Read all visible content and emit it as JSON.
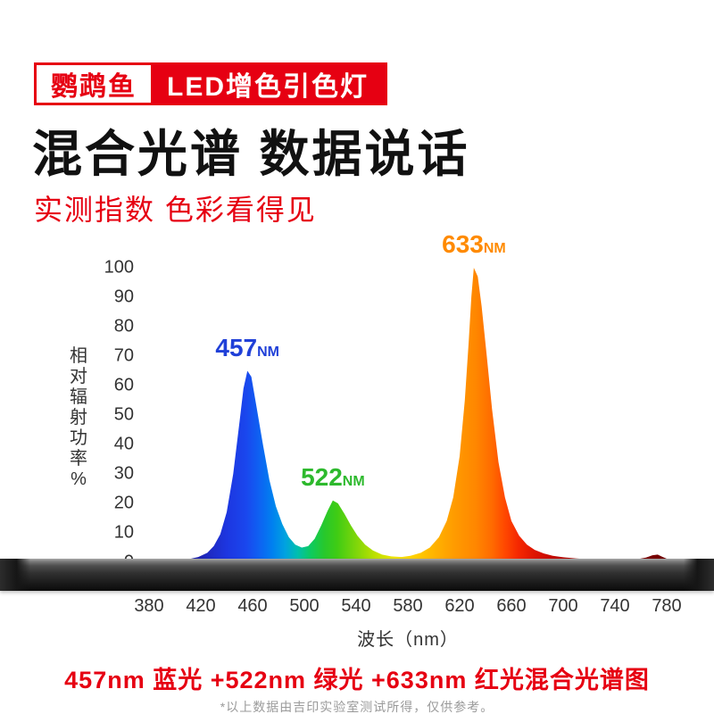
{
  "header": {
    "brand": "鹦鹉鱼",
    "product": "LED增色引色灯",
    "title": "混合光谱 数据说话",
    "subtitle": "实测指数 色彩看得见"
  },
  "colors": {
    "accent_red": "#e60012",
    "blue_label": "#2040d8",
    "green_label": "#2db92d",
    "orange_label": "#ff8a00"
  },
  "chart_data": {
    "type": "area",
    "title": "457nm 蓝光 +522nm 绿光 +633nm 红光混合光谱图",
    "xlabel": "波长（nm）",
    "ylabel": "相对辐射功率%",
    "xlim": [
      380,
      780
    ],
    "ylim": [
      0,
      100
    ],
    "x_ticks": [
      380,
      420,
      460,
      500,
      540,
      580,
      620,
      660,
      700,
      740,
      780
    ],
    "y_ticks": [
      0,
      10,
      20,
      30,
      40,
      50,
      60,
      70,
      80,
      90,
      100
    ],
    "grid": false,
    "legend": false,
    "peaks": [
      {
        "label_value": "457",
        "label_unit": "NM",
        "wavelength": 456,
        "value": 65,
        "color": "#2040d8"
      },
      {
        "label_value": "522",
        "label_unit": "NM",
        "wavelength": 522,
        "value": 21,
        "color": "#2db92d"
      },
      {
        "label_value": "633",
        "label_unit": "NM",
        "wavelength": 631,
        "value": 100,
        "color": "#ff8a00"
      }
    ],
    "points": [
      [
        380,
        0.3
      ],
      [
        390,
        0.4
      ],
      [
        400,
        0.6
      ],
      [
        410,
        1
      ],
      [
        418,
        1.8
      ],
      [
        425,
        3.2
      ],
      [
        430,
        5.5
      ],
      [
        435,
        9.5
      ],
      [
        440,
        17
      ],
      [
        445,
        30
      ],
      [
        450,
        48
      ],
      [
        453,
        59
      ],
      [
        456,
        65
      ],
      [
        459,
        63
      ],
      [
        463,
        53
      ],
      [
        468,
        40
      ],
      [
        473,
        28
      ],
      [
        478,
        19
      ],
      [
        483,
        13
      ],
      [
        488,
        8.5
      ],
      [
        493,
        6
      ],
      [
        498,
        5
      ],
      [
        503,
        5.5
      ],
      [
        508,
        8
      ],
      [
        513,
        12.5
      ],
      [
        518,
        17.5
      ],
      [
        522,
        21
      ],
      [
        526,
        20
      ],
      [
        531,
        16.5
      ],
      [
        536,
        12.5
      ],
      [
        541,
        9
      ],
      [
        547,
        6
      ],
      [
        553,
        4
      ],
      [
        560,
        2.6
      ],
      [
        567,
        2
      ],
      [
        575,
        1.8
      ],
      [
        582,
        2.2
      ],
      [
        590,
        3.2
      ],
      [
        597,
        5
      ],
      [
        604,
        8.5
      ],
      [
        610,
        14
      ],
      [
        615,
        22
      ],
      [
        620,
        36
      ],
      [
        624,
        55
      ],
      [
        627,
        75
      ],
      [
        629,
        90
      ],
      [
        631,
        100
      ],
      [
        634,
        97
      ],
      [
        637,
        87
      ],
      [
        641,
        70
      ],
      [
        645,
        52
      ],
      [
        650,
        34
      ],
      [
        655,
        22
      ],
      [
        660,
        14
      ],
      [
        666,
        9
      ],
      [
        672,
        6
      ],
      [
        678,
        4.2
      ],
      [
        685,
        3
      ],
      [
        692,
        2.2
      ],
      [
        700,
        1.7
      ],
      [
        710,
        1.3
      ],
      [
        720,
        1
      ],
      [
        730,
        0.9
      ],
      [
        740,
        0.8
      ],
      [
        750,
        0.9
      ],
      [
        758,
        1.1
      ],
      [
        764,
        1.6
      ],
      [
        769,
        2.4
      ],
      [
        773,
        2.6
      ],
      [
        777,
        1.8
      ],
      [
        780,
        1.2
      ]
    ],
    "gradient_stops": [
      [
        380,
        "#1b1570"
      ],
      [
        420,
        "#1e24b4"
      ],
      [
        440,
        "#1d36e0"
      ],
      [
        455,
        "#1a47ee"
      ],
      [
        465,
        "#0e62f2"
      ],
      [
        475,
        "#0080f0"
      ],
      [
        485,
        "#00a2e0"
      ],
      [
        495,
        "#00bfae"
      ],
      [
        505,
        "#0ecb5e"
      ],
      [
        515,
        "#27c82d"
      ],
      [
        525,
        "#3fcc14"
      ],
      [
        540,
        "#7ed60a"
      ],
      [
        555,
        "#bfe100"
      ],
      [
        570,
        "#f2e600"
      ],
      [
        585,
        "#ffd000"
      ],
      [
        600,
        "#ffb400"
      ],
      [
        615,
        "#ff9c00"
      ],
      [
        633,
        "#ff8600"
      ],
      [
        645,
        "#ff6a00"
      ],
      [
        655,
        "#ff4700"
      ],
      [
        665,
        "#f52800"
      ],
      [
        678,
        "#de1400"
      ],
      [
        695,
        "#bf0800"
      ],
      [
        720,
        "#9d0300"
      ],
      [
        750,
        "#850000"
      ],
      [
        780,
        "#700000"
      ]
    ]
  },
  "caption": "457nm 蓝光 +522nm 绿光 +633nm 红光混合光谱图",
  "footnote": "*以上数据由吉印实验室测试所得，仅供参考。"
}
